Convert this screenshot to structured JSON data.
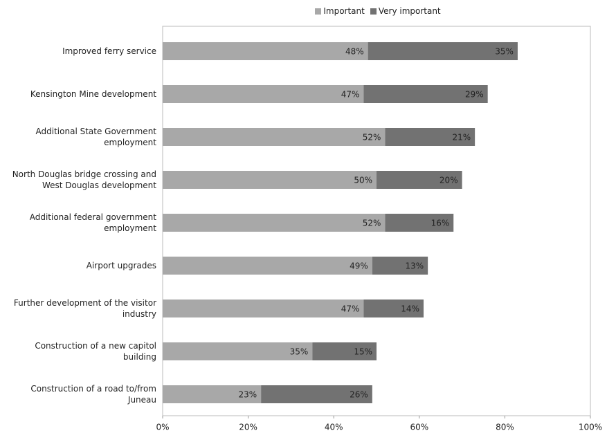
{
  "chart_data": {
    "type": "stacked-bar-horizontal",
    "categories": [
      "Improved ferry service",
      "Kensington Mine development",
      "Additional State Government employment",
      "North Douglas bridge crossing and West Douglas development",
      "Additional federal government employment",
      "Airport upgrades",
      "Further development of the visitor industry",
      "Construction of a new capitol building",
      "Construction of a road to/from Juneau"
    ],
    "series": [
      {
        "name": "Important",
        "color": "#a8a8a8",
        "values": [
          48,
          47,
          52,
          50,
          52,
          49,
          47,
          35,
          23
        ],
        "value_labels": [
          "48%",
          "47%",
          "52%",
          "50%",
          "52%",
          "49%",
          "47%",
          "35%",
          "23%"
        ]
      },
      {
        "name": "Very important",
        "color": "#727272",
        "values": [
          35,
          29,
          21,
          20,
          16,
          13,
          14,
          15,
          26
        ],
        "value_labels": [
          "35%",
          "29%",
          "21%",
          "20%",
          "16%",
          "13%",
          "14%",
          "15%",
          "26%"
        ]
      }
    ],
    "xlim": [
      0,
      100
    ],
    "xticks": [
      {
        "value": 0,
        "label": "0%"
      },
      {
        "value": 20,
        "label": "20%"
      },
      {
        "value": 40,
        "label": "40%"
      },
      {
        "value": 60,
        "label": "60%"
      },
      {
        "value": 80,
        "label": "80%"
      },
      {
        "value": 100,
        "label": "100%"
      }
    ],
    "legend": "top"
  }
}
